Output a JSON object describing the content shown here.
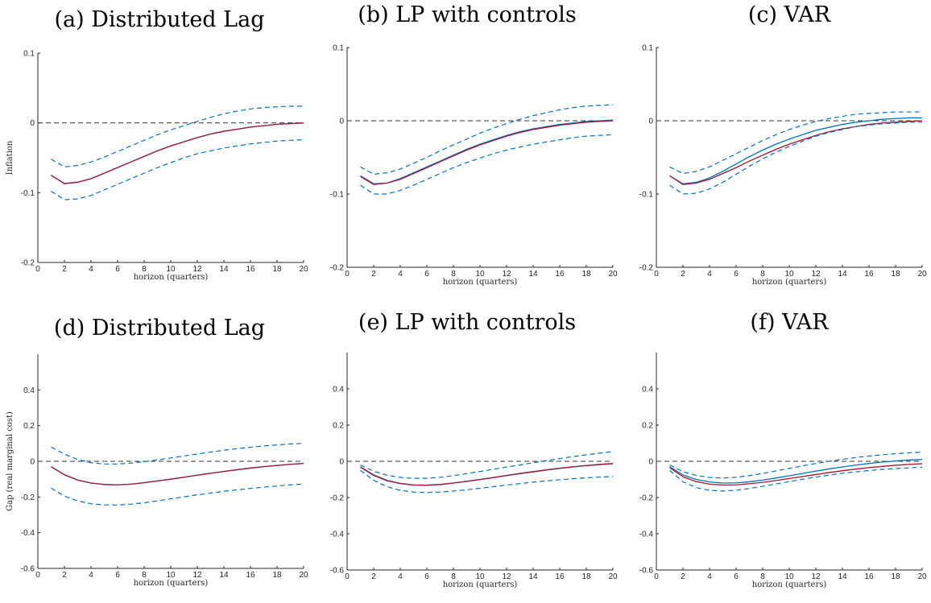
{
  "chart_data": [
    {
      "type": "line",
      "title": "(a) Distributed Lag",
      "xlabel": "horizon (quarters)",
      "ylabel": "Inflation",
      "xlim": [
        0,
        20
      ],
      "ylim": [
        -0.2,
        0.1
      ],
      "xticks": [
        0,
        2,
        4,
        6,
        8,
        10,
        12,
        14,
        16,
        18,
        20
      ],
      "yticks": [
        -0.2,
        -0.1,
        0,
        0.1
      ],
      "ytick_labels": [
        "-0.2",
        "-0.1",
        "0",
        "0.1"
      ],
      "x": [
        1,
        2,
        3,
        4,
        5,
        6,
        7,
        8,
        9,
        10,
        11,
        12,
        13,
        14,
        15,
        16,
        17,
        18,
        19,
        20
      ],
      "series": [
        {
          "role": "true",
          "color": "#0072BD",
          "values": [
            -0.075,
            -0.087,
            -0.085,
            -0.08,
            -0.072,
            -0.064,
            -0.056,
            -0.048,
            -0.04,
            -0.033,
            -0.027,
            -0.021,
            -0.016,
            -0.012,
            -0.009,
            -0.006,
            -0.004,
            -0.002,
            -0.001,
            0.0
          ]
        },
        {
          "role": "estimate",
          "color": "#A2142F",
          "values": [
            -0.075,
            -0.087,
            -0.085,
            -0.08,
            -0.072,
            -0.064,
            -0.056,
            -0.048,
            -0.04,
            -0.033,
            -0.027,
            -0.021,
            -0.016,
            -0.012,
            -0.009,
            -0.006,
            -0.004,
            -0.002,
            -0.001,
            0.0
          ]
        },
        {
          "role": "upper",
          "color": "#0072BD",
          "dashed": true,
          "values": [
            -0.052,
            -0.063,
            -0.061,
            -0.056,
            -0.049,
            -0.041,
            -0.033,
            -0.025,
            -0.017,
            -0.01,
            -0.004,
            0.002,
            0.008,
            0.013,
            0.017,
            0.02,
            0.022,
            0.023,
            0.024,
            0.024
          ]
        },
        {
          "role": "lower",
          "color": "#0072BD",
          "dashed": true,
          "values": [
            -0.098,
            -0.11,
            -0.109,
            -0.104,
            -0.096,
            -0.088,
            -0.08,
            -0.072,
            -0.064,
            -0.057,
            -0.05,
            -0.044,
            -0.04,
            -0.036,
            -0.033,
            -0.03,
            -0.028,
            -0.026,
            -0.025,
            -0.024
          ]
        }
      ]
    },
    {
      "type": "line",
      "title": "(b) LP with controls",
      "xlabel": "horizon (quarters)",
      "ylabel": "",
      "xlim": [
        0,
        20
      ],
      "ylim": [
        -0.2,
        0.1
      ],
      "xticks": [
        0,
        2,
        4,
        6,
        8,
        10,
        12,
        14,
        16,
        18,
        20
      ],
      "yticks": [
        -0.2,
        -0.1,
        0,
        0.1
      ],
      "ytick_labels": [
        "-0.2",
        "-0.1",
        "0",
        "0.1"
      ],
      "x": [
        1,
        2,
        3,
        4,
        5,
        6,
        7,
        8,
        9,
        10,
        11,
        12,
        13,
        14,
        15,
        16,
        17,
        18,
        19,
        20
      ],
      "series": [
        {
          "role": "true",
          "color": "#0072BD",
          "values": [
            -0.075,
            -0.086,
            -0.085,
            -0.079,
            -0.071,
            -0.063,
            -0.055,
            -0.047,
            -0.039,
            -0.032,
            -0.026,
            -0.02,
            -0.015,
            -0.011,
            -0.008,
            -0.005,
            -0.003,
            -0.001,
            0.0,
            0.001
          ]
        },
        {
          "role": "estimate",
          "color": "#A2142F",
          "values": [
            -0.076,
            -0.087,
            -0.085,
            -0.08,
            -0.072,
            -0.064,
            -0.056,
            -0.048,
            -0.04,
            -0.033,
            -0.027,
            -0.021,
            -0.016,
            -0.012,
            -0.009,
            -0.006,
            -0.004,
            -0.002,
            -0.001,
            0.0
          ]
        },
        {
          "role": "upper",
          "color": "#0072BD",
          "dashed": true,
          "values": [
            -0.063,
            -0.073,
            -0.071,
            -0.066,
            -0.058,
            -0.05,
            -0.041,
            -0.033,
            -0.025,
            -0.017,
            -0.01,
            -0.004,
            0.002,
            0.007,
            0.011,
            0.015,
            0.018,
            0.02,
            0.021,
            0.022
          ]
        },
        {
          "role": "lower",
          "color": "#0072BD",
          "dashed": true,
          "values": [
            -0.088,
            -0.1,
            -0.1,
            -0.095,
            -0.088,
            -0.08,
            -0.072,
            -0.064,
            -0.057,
            -0.051,
            -0.045,
            -0.04,
            -0.036,
            -0.032,
            -0.029,
            -0.026,
            -0.023,
            -0.021,
            -0.02,
            -0.019
          ]
        }
      ]
    },
    {
      "type": "line",
      "title": "(c) VAR",
      "xlabel": "horizon (quarters)",
      "ylabel": "",
      "xlim": [
        0,
        20
      ],
      "ylim": [
        -0.2,
        0.1
      ],
      "xticks": [
        0,
        2,
        4,
        6,
        8,
        10,
        12,
        14,
        16,
        18,
        20
      ],
      "yticks": [
        -0.2,
        -0.1,
        0,
        0.1
      ],
      "ytick_labels": [
        "-0.2",
        "-0.1",
        "0",
        "0.1"
      ],
      "x": [
        1,
        2,
        3,
        4,
        5,
        6,
        7,
        8,
        9,
        10,
        11,
        12,
        13,
        14,
        15,
        16,
        17,
        18,
        19,
        20
      ],
      "series": [
        {
          "role": "true",
          "color": "#0072BD",
          "values": [
            -0.075,
            -0.086,
            -0.084,
            -0.078,
            -0.069,
            -0.059,
            -0.049,
            -0.04,
            -0.032,
            -0.025,
            -0.019,
            -0.013,
            -0.009,
            -0.005,
            -0.002,
            0.0,
            0.002,
            0.003,
            0.004,
            0.004
          ]
        },
        {
          "role": "estimate",
          "color": "#A2142F",
          "values": [
            -0.075,
            -0.087,
            -0.085,
            -0.08,
            -0.072,
            -0.064,
            -0.055,
            -0.047,
            -0.039,
            -0.032,
            -0.026,
            -0.02,
            -0.015,
            -0.011,
            -0.008,
            -0.005,
            -0.003,
            -0.002,
            -0.001,
            0.0
          ]
        },
        {
          "role": "upper",
          "color": "#0072BD",
          "dashed": true,
          "values": [
            -0.063,
            -0.072,
            -0.069,
            -0.063,
            -0.054,
            -0.045,
            -0.036,
            -0.027,
            -0.019,
            -0.012,
            -0.006,
            -0.001,
            0.003,
            0.006,
            0.009,
            0.01,
            0.011,
            0.012,
            0.012,
            0.012
          ]
        },
        {
          "role": "lower",
          "color": "#0072BD",
          "dashed": true,
          "values": [
            -0.088,
            -0.1,
            -0.099,
            -0.093,
            -0.084,
            -0.073,
            -0.062,
            -0.052,
            -0.043,
            -0.035,
            -0.028,
            -0.021,
            -0.016,
            -0.012,
            -0.008,
            -0.006,
            -0.004,
            -0.003,
            -0.002,
            -0.002
          ]
        }
      ]
    },
    {
      "type": "line",
      "title": "(d) Distributed Lag",
      "xlabel": "horizon (quarters)",
      "ylabel": "Gap (real marginal cost)",
      "xlim": [
        0,
        20
      ],
      "ylim": [
        -0.6,
        0.6
      ],
      "xticks": [
        0,
        2,
        4,
        6,
        8,
        10,
        12,
        14,
        16,
        18,
        20
      ],
      "yticks": [
        -0.6,
        -0.4,
        -0.2,
        0,
        0.2,
        0.4
      ],
      "ytick_labels": [
        "-0.6",
        "-0.4",
        "-0.2",
        "0",
        "0.2",
        "0.4"
      ],
      "x": [
        1,
        2,
        3,
        4,
        5,
        6,
        7,
        8,
        9,
        10,
        11,
        12,
        13,
        14,
        15,
        16,
        17,
        18,
        19,
        20
      ],
      "series": [
        {
          "role": "true",
          "color": "#0072BD",
          "values": [
            -0.03,
            -0.075,
            -0.105,
            -0.122,
            -0.13,
            -0.132,
            -0.128,
            -0.12,
            -0.11,
            -0.1,
            -0.089,
            -0.078,
            -0.067,
            -0.057,
            -0.047,
            -0.038,
            -0.03,
            -0.023,
            -0.017,
            -0.012
          ]
        },
        {
          "role": "estimate",
          "color": "#A2142F",
          "values": [
            -0.03,
            -0.075,
            -0.105,
            -0.122,
            -0.13,
            -0.132,
            -0.128,
            -0.12,
            -0.11,
            -0.1,
            -0.089,
            -0.078,
            -0.067,
            -0.057,
            -0.047,
            -0.038,
            -0.03,
            -0.023,
            -0.017,
            -0.012
          ]
        },
        {
          "role": "upper",
          "color": "#0072BD",
          "dashed": true,
          "values": [
            0.08,
            0.04,
            0.01,
            -0.008,
            -0.015,
            -0.015,
            -0.01,
            -0.002,
            0.008,
            0.019,
            0.03,
            0.041,
            0.052,
            0.062,
            0.071,
            0.079,
            0.086,
            0.092,
            0.097,
            0.1
          ]
        },
        {
          "role": "lower",
          "color": "#0072BD",
          "dashed": true,
          "values": [
            -0.15,
            -0.195,
            -0.222,
            -0.238,
            -0.244,
            -0.245,
            -0.24,
            -0.232,
            -0.222,
            -0.21,
            -0.199,
            -0.188,
            -0.178,
            -0.168,
            -0.16,
            -0.152,
            -0.145,
            -0.138,
            -0.132,
            -0.127
          ]
        }
      ]
    },
    {
      "type": "line",
      "title": "(e) LP with controls",
      "xlabel": "horizon (quarters)",
      "ylabel": "",
      "xlim": [
        0,
        20
      ],
      "ylim": [
        -0.6,
        0.6
      ],
      "xticks": [
        0,
        2,
        4,
        6,
        8,
        10,
        12,
        14,
        16,
        18,
        20
      ],
      "yticks": [
        -0.6,
        -0.4,
        -0.2,
        0,
        0.2,
        0.4
      ],
      "ytick_labels": [
        "-0.6",
        "-0.4",
        "-0.2",
        "0",
        "0.2",
        "0.4"
      ],
      "x": [
        1,
        2,
        3,
        4,
        5,
        6,
        7,
        8,
        9,
        10,
        11,
        12,
        13,
        14,
        15,
        16,
        17,
        18,
        19,
        20
      ],
      "series": [
        {
          "role": "true",
          "color": "#0072BD",
          "values": [
            -0.03,
            -0.075,
            -0.105,
            -0.122,
            -0.13,
            -0.132,
            -0.128,
            -0.12,
            -0.11,
            -0.1,
            -0.089,
            -0.078,
            -0.067,
            -0.057,
            -0.047,
            -0.038,
            -0.03,
            -0.023,
            -0.017,
            -0.012
          ]
        },
        {
          "role": "estimate",
          "color": "#A2142F",
          "values": [
            -0.032,
            -0.078,
            -0.107,
            -0.123,
            -0.131,
            -0.132,
            -0.128,
            -0.12,
            -0.111,
            -0.101,
            -0.09,
            -0.079,
            -0.068,
            -0.058,
            -0.048,
            -0.039,
            -0.031,
            -0.024,
            -0.018,
            -0.013
          ]
        },
        {
          "role": "upper",
          "color": "#0072BD",
          "dashed": true,
          "values": [
            -0.02,
            -0.055,
            -0.077,
            -0.089,
            -0.094,
            -0.094,
            -0.088,
            -0.079,
            -0.068,
            -0.056,
            -0.044,
            -0.032,
            -0.02,
            -0.008,
            0.004,
            0.015,
            0.026,
            0.036,
            0.045,
            0.053
          ]
        },
        {
          "role": "lower",
          "color": "#0072BD",
          "dashed": true,
          "values": [
            -0.05,
            -0.105,
            -0.14,
            -0.16,
            -0.17,
            -0.172,
            -0.17,
            -0.164,
            -0.157,
            -0.149,
            -0.14,
            -0.131,
            -0.123,
            -0.115,
            -0.108,
            -0.102,
            -0.096,
            -0.091,
            -0.087,
            -0.084
          ]
        }
      ]
    },
    {
      "type": "line",
      "title": "(f) VAR",
      "xlabel": "horizon (quarters)",
      "ylabel": "",
      "xlim": [
        0,
        20
      ],
      "ylim": [
        -0.6,
        0.6
      ],
      "xticks": [
        0,
        2,
        4,
        6,
        8,
        10,
        12,
        14,
        16,
        18,
        20
      ],
      "yticks": [
        -0.6,
        -0.4,
        -0.2,
        0,
        0.2,
        0.4
      ],
      "ytick_labels": [
        "-0.6",
        "-0.4",
        "-0.2",
        "0",
        "0.2",
        "0.4"
      ],
      "x": [
        1,
        2,
        3,
        4,
        5,
        6,
        7,
        8,
        9,
        10,
        11,
        12,
        13,
        14,
        15,
        16,
        17,
        18,
        19,
        20
      ],
      "series": [
        {
          "role": "true",
          "color": "#0072BD",
          "values": [
            -0.03,
            -0.075,
            -0.1,
            -0.114,
            -0.12,
            -0.119,
            -0.113,
            -0.104,
            -0.092,
            -0.08,
            -0.067,
            -0.054,
            -0.042,
            -0.031,
            -0.021,
            -0.012,
            -0.004,
            0.002,
            0.007,
            0.01
          ]
        },
        {
          "role": "estimate",
          "color": "#A2142F",
          "values": [
            -0.035,
            -0.085,
            -0.112,
            -0.126,
            -0.131,
            -0.13,
            -0.124,
            -0.116,
            -0.106,
            -0.095,
            -0.084,
            -0.073,
            -0.062,
            -0.052,
            -0.043,
            -0.035,
            -0.028,
            -0.022,
            -0.017,
            -0.013
          ]
        },
        {
          "role": "upper",
          "color": "#0072BD",
          "dashed": true,
          "values": [
            -0.02,
            -0.057,
            -0.078,
            -0.089,
            -0.092,
            -0.088,
            -0.079,
            -0.067,
            -0.053,
            -0.039,
            -0.025,
            -0.012,
            0.0,
            0.011,
            0.021,
            0.029,
            0.036,
            0.042,
            0.047,
            0.05
          ]
        },
        {
          "role": "lower",
          "color": "#0072BD",
          "dashed": true,
          "values": [
            -0.05,
            -0.113,
            -0.145,
            -0.16,
            -0.164,
            -0.16,
            -0.15,
            -0.138,
            -0.125,
            -0.112,
            -0.099,
            -0.087,
            -0.076,
            -0.066,
            -0.058,
            -0.051,
            -0.045,
            -0.04,
            -0.036,
            -0.033
          ]
        }
      ]
    }
  ]
}
